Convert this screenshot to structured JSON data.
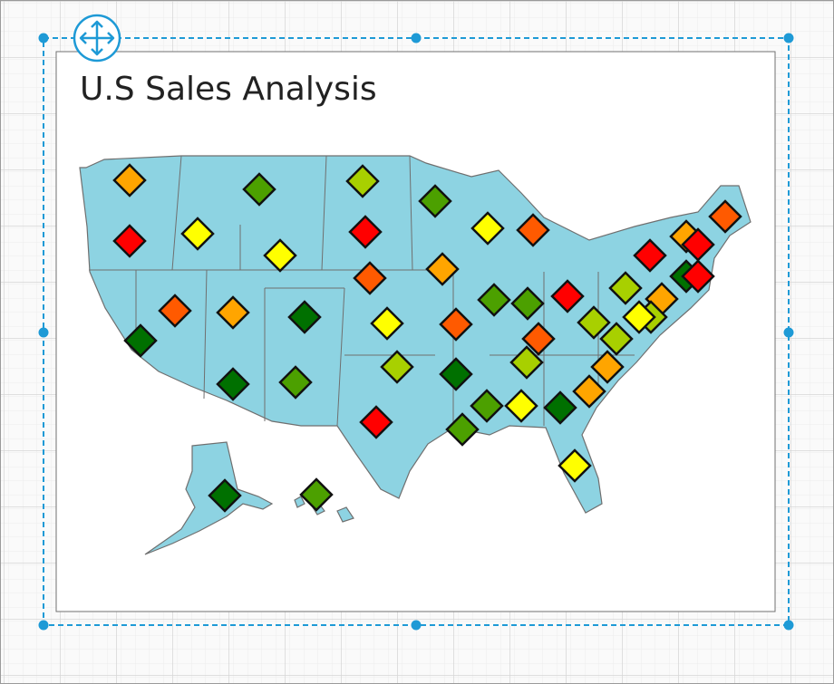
{
  "widget": {
    "title": "U.S Sales Analysis"
  }
}
